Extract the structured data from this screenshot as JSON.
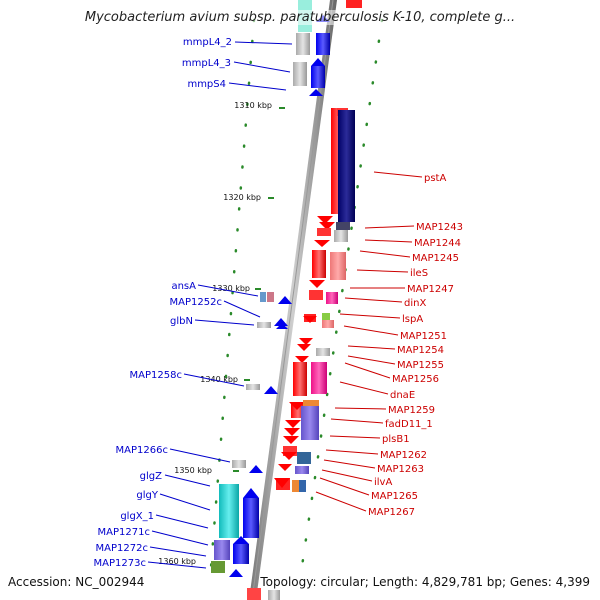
{
  "title": "Mycobacterium avium subsp. paratuberculosis K-10, complete g...",
  "accession": "Accession: NC_002944",
  "topology": "Topology: circular; Length: 4,829,781 bp; Genes: 4,399",
  "ticks": [
    {
      "label": "1310 kbp"
    },
    {
      "label": "1320 kbp"
    },
    {
      "label": "1330 kbp"
    },
    {
      "label": "1340 kbp"
    },
    {
      "label": "1350 kbp"
    },
    {
      "label": "1360 kbp"
    }
  ],
  "genes_left": [
    {
      "label": "mmpL4_2"
    },
    {
      "label": "mmpL4_3"
    },
    {
      "label": "mmpS4"
    },
    {
      "label": "ansA"
    },
    {
      "label": "MAP1252c"
    },
    {
      "label": "glbN"
    },
    {
      "label": "MAP1258c"
    },
    {
      "label": "MAP1266c"
    },
    {
      "label": "glgZ"
    },
    {
      "label": "glgY"
    },
    {
      "label": "glgX_1"
    },
    {
      "label": "MAP1271c"
    },
    {
      "label": "MAP1272c"
    },
    {
      "label": "MAP1273c"
    }
  ],
  "genes_right": [
    {
      "label": "pstA"
    },
    {
      "label": "MAP1243"
    },
    {
      "label": "MAP1244"
    },
    {
      "label": "MAP1245"
    },
    {
      "label": "ileS"
    },
    {
      "label": "MAP1247"
    },
    {
      "label": "dinX"
    },
    {
      "label": "lspA"
    },
    {
      "label": "MAP1251"
    },
    {
      "label": "MAP1254"
    },
    {
      "label": "MAP1255"
    },
    {
      "label": "MAP1256"
    },
    {
      "label": "dnaE"
    },
    {
      "label": "MAP1259"
    },
    {
      "label": "fadD11_1"
    },
    {
      "label": "plsB1"
    },
    {
      "label": "MAP1262"
    },
    {
      "label": "MAP1263"
    },
    {
      "label": "ilvA"
    },
    {
      "label": "MAP1265"
    },
    {
      "label": "MAP1267"
    }
  ],
  "colors": {
    "forward_strand": "#ff0000",
    "reverse_strand": "#0000ff",
    "backbone": "#888888",
    "left_label": "#0000cc",
    "right_label": "#cc0000",
    "tick_dots": "#228822"
  }
}
